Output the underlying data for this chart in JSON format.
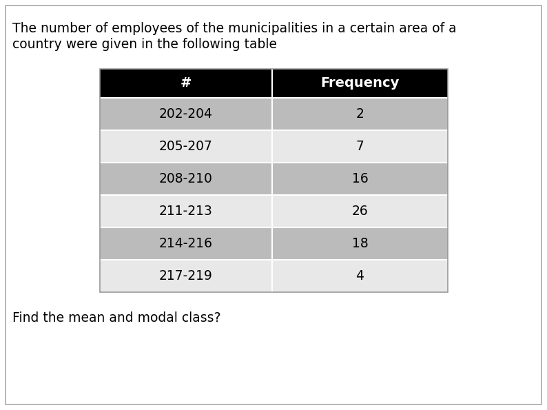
{
  "title_line1": "The number of employees of the municipalities in a certain area of a",
  "title_line2": "country were given in the following table",
  "footer": "Find the mean and modal class?",
  "col_headers": [
    "#",
    "Frequency"
  ],
  "rows": [
    [
      "202-204",
      "2"
    ],
    [
      "205-207",
      "7"
    ],
    [
      "208-210",
      "16"
    ],
    [
      "211-213",
      "26"
    ],
    [
      "214-216",
      "18"
    ],
    [
      "217-219",
      "4"
    ]
  ],
  "header_bg": "#000000",
  "header_fg": "#ffffff",
  "row_colors": [
    "#bbbbbb",
    "#e8e8e8",
    "#bbbbbb",
    "#e8e8e8",
    "#bbbbbb",
    "#e8e8e8"
  ],
  "title_fontsize": 13.5,
  "header_fontsize": 14,
  "cell_fontsize": 13.5,
  "footer_fontsize": 13.5,
  "fig_bg": "#ffffff",
  "border_color": "#ffffff",
  "table_border_color": "#999999"
}
